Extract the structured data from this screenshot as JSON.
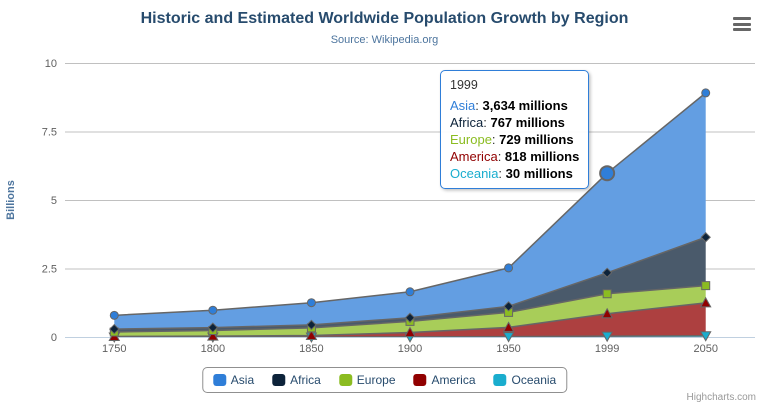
{
  "header": {
    "title": "Historic and Estimated Worldwide Population Growth by Region",
    "subtitle": "Source: Wikipedia.org"
  },
  "credits": {
    "label": "Highcharts.com"
  },
  "tooltip": {
    "header": "1999",
    "rows": [
      {
        "name": "Asia",
        "value": "3,634 millions",
        "color": "#2f7ed8"
      },
      {
        "name": "Africa",
        "value": "767 millions",
        "color": "#0d233a"
      },
      {
        "name": "Europe",
        "value": "729 millions",
        "color": "#8bbc21"
      },
      {
        "name": "America",
        "value": "818 millions",
        "color": "#910000"
      },
      {
        "name": "Oceania",
        "value": "30 millions",
        "color": "#1aadce"
      }
    ]
  },
  "legend": {
    "items": [
      {
        "label": "Asia",
        "color": "#2f7ed8"
      },
      {
        "label": "Africa",
        "color": "#0d233a"
      },
      {
        "label": "Europe",
        "color": "#8bbc21"
      },
      {
        "label": "America",
        "color": "#910000"
      },
      {
        "label": "Oceania",
        "color": "#1aadce"
      }
    ]
  },
  "chart_data": {
    "type": "area",
    "stacking": "normal",
    "title": "Historic and Estimated Worldwide Population Growth by Region",
    "subtitle": "Source: Wikipedia.org",
    "categories": [
      "1750",
      "1800",
      "1850",
      "1900",
      "1950",
      "1999",
      "2050"
    ],
    "series": [
      {
        "name": "Asia",
        "color": "#2f7ed8",
        "marker": "circle",
        "values": [
          502,
          635,
          809,
          947,
          1402,
          3634,
          5268
        ]
      },
      {
        "name": "Africa",
        "color": "#0d233a",
        "marker": "diamond",
        "values": [
          106,
          107,
          111,
          133,
          221,
          767,
          1766
        ]
      },
      {
        "name": "Europe",
        "color": "#8bbc21",
        "marker": "square",
        "values": [
          163,
          203,
          276,
          408,
          547,
          729,
          628
        ]
      },
      {
        "name": "America",
        "color": "#910000",
        "marker": "triangle",
        "values": [
          18,
          31,
          54,
          156,
          339,
          818,
          1201
        ]
      },
      {
        "name": "Oceania",
        "color": "#1aadce",
        "marker": "triangle-down",
        "values": [
          2,
          2,
          2,
          6,
          13,
          30,
          46
        ]
      }
    ],
    "values_unit": "millions",
    "xlabel": "",
    "ylabel": "Billions",
    "yticks": [
      0,
      2.5,
      5,
      7.5,
      10
    ],
    "ylim": [
      0,
      10
    ],
    "grid": true,
    "legend_position": "bottom",
    "hovered_point": {
      "series": "Asia",
      "category": "1999",
      "stack_total_billions": 5.978
    },
    "stack_totals_billions": [
      0.791,
      0.978,
      1.252,
      1.65,
      2.522,
      5.978,
      8.909
    ],
    "line_color": "#666666",
    "grid_line_color": "#c0c0c0",
    "axis_line_color": "#c0d0e0"
  }
}
